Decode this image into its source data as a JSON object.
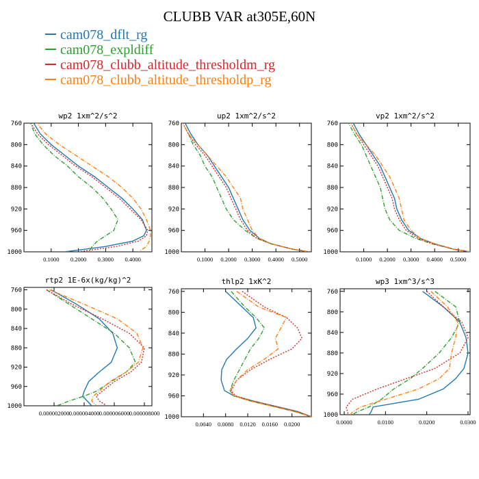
{
  "title": "CLUBB VAR at305E,60N",
  "legend": [
    {
      "label": "cam078_dflt_rg",
      "color": "#1f77b4"
    },
    {
      "label": "cam078_expldiff",
      "color": "#2ca02c"
    },
    {
      "label": "cam078_clubb_altitude_thresholdm_rg",
      "color": "#d62728"
    },
    {
      "label": "cam078_clubb_altitude_thresholdp_rg",
      "color": "#ff7f0e"
    }
  ],
  "chart_data": [
    {
      "type": "line",
      "title": "wp2   1xm^2/s^2",
      "xlim": [
        0,
        0.47
      ],
      "ylim": [
        760,
        1000
      ],
      "yticks": [
        760,
        800,
        840,
        880,
        920,
        960,
        1000
      ],
      "xticks": [
        0.1,
        0.2,
        0.3,
        0.4
      ],
      "xtick_labels": [
        "0.1000",
        "0.2000",
        "0.3000",
        "0.4000"
      ],
      "y": [
        755,
        780,
        800,
        820,
        840,
        860,
        880,
        900,
        920,
        940,
        960,
        970,
        980,
        990,
        1000
      ],
      "series": [
        {
          "name": "cam078_dflt_rg",
          "x": [
            0.03,
            0.06,
            0.1,
            0.15,
            0.2,
            0.26,
            0.31,
            0.36,
            0.4,
            0.435,
            0.45,
            0.44,
            0.4,
            0.3,
            0.15
          ]
        },
        {
          "name": "cam078_expldiff",
          "x": [
            0.02,
            0.04,
            0.07,
            0.11,
            0.16,
            0.2,
            0.25,
            0.29,
            0.32,
            0.345,
            0.33,
            0.3,
            0.27,
            0.25,
            0.24
          ]
        },
        {
          "name": "cam078_clubb_altitude_thresholdm_rg",
          "x": [
            0.02,
            0.05,
            0.09,
            0.14,
            0.19,
            0.25,
            0.3,
            0.35,
            0.39,
            0.43,
            0.455,
            0.45,
            0.42,
            0.34,
            0.2
          ]
        },
        {
          "name": "cam078_clubb_altitude_thresholdp_rg",
          "x": [
            0.04,
            0.08,
            0.13,
            0.19,
            0.25,
            0.31,
            0.36,
            0.4,
            0.43,
            0.45,
            0.465,
            0.465,
            0.46,
            0.45,
            0.42
          ]
        }
      ]
    },
    {
      "type": "line",
      "title": "up2   1xm^2/s^2",
      "xlim": [
        0,
        0.55
      ],
      "ylim": [
        760,
        1000
      ],
      "yticks": [
        760,
        800,
        840,
        880,
        920,
        960,
        1000
      ],
      "xticks": [
        0.1,
        0.2,
        0.3,
        0.4,
        0.5
      ],
      "xtick_labels": [
        "0.1000",
        "0.2000",
        "0.3000",
        "0.4000",
        "0.5000"
      ],
      "y": [
        755,
        780,
        800,
        820,
        840,
        860,
        880,
        900,
        920,
        940,
        960,
        975,
        985,
        995,
        1000
      ],
      "series": [
        {
          "name": "cam078_dflt_rg",
          "x": [
            0.01,
            0.04,
            0.07,
            0.11,
            0.14,
            0.17,
            0.2,
            0.22,
            0.24,
            0.26,
            0.29,
            0.33,
            0.38,
            0.47,
            0.54
          ]
        },
        {
          "name": "cam078_expldiff",
          "x": [
            0.0,
            0.03,
            0.05,
            0.08,
            0.1,
            0.13,
            0.15,
            0.17,
            0.19,
            0.22,
            0.27,
            0.32,
            0.38,
            0.47,
            0.54
          ]
        },
        {
          "name": "cam078_clubb_altitude_thresholdm_rg",
          "x": [
            0.0,
            0.03,
            0.06,
            0.1,
            0.13,
            0.16,
            0.19,
            0.21,
            0.23,
            0.25,
            0.28,
            0.32,
            0.38,
            0.47,
            0.54
          ]
        },
        {
          "name": "cam078_clubb_altitude_thresholdp_rg",
          "x": [
            0.0,
            0.03,
            0.07,
            0.11,
            0.15,
            0.19,
            0.22,
            0.25,
            0.26,
            0.28,
            0.3,
            0.33,
            0.38,
            0.47,
            0.54
          ]
        }
      ]
    },
    {
      "type": "line",
      "title": "vp2   1xm^2/s^2",
      "xlim": [
        0,
        0.55
      ],
      "ylim": [
        760,
        1000
      ],
      "yticks": [
        760,
        800,
        840,
        880,
        920,
        960,
        1000
      ],
      "xticks": [
        0.1,
        0.2,
        0.3,
        0.4,
        0.5
      ],
      "xtick_labels": [
        "0.1000",
        "0.2000",
        "0.3000",
        "0.4000",
        "0.5000"
      ],
      "y": [
        755,
        780,
        800,
        820,
        840,
        860,
        880,
        900,
        920,
        940,
        960,
        975,
        985,
        995,
        1000
      ],
      "series": [
        {
          "name": "cam078_dflt_rg",
          "x": [
            0.05,
            0.08,
            0.11,
            0.14,
            0.17,
            0.19,
            0.21,
            0.23,
            0.24,
            0.26,
            0.29,
            0.34,
            0.4,
            0.48,
            0.55
          ]
        },
        {
          "name": "cam078_expldiff",
          "x": [
            0.03,
            0.06,
            0.09,
            0.11,
            0.13,
            0.15,
            0.17,
            0.18,
            0.19,
            0.21,
            0.25,
            0.32,
            0.39,
            0.48,
            0.55
          ]
        },
        {
          "name": "cam078_clubb_altitude_thresholdm_rg",
          "x": [
            0.04,
            0.07,
            0.1,
            0.13,
            0.16,
            0.18,
            0.2,
            0.22,
            0.23,
            0.25,
            0.28,
            0.33,
            0.39,
            0.48,
            0.55
          ]
        },
        {
          "name": "cam078_clubb_altitude_thresholdp_rg",
          "x": [
            0.04,
            0.07,
            0.11,
            0.15,
            0.18,
            0.21,
            0.23,
            0.25,
            0.26,
            0.27,
            0.3,
            0.34,
            0.4,
            0.48,
            0.55
          ]
        }
      ]
    },
    {
      "type": "line",
      "title": "rtp2   1E-6x(kg/kg)^2",
      "xlim": [
        0,
        8.5e-06
      ],
      "ylim": [
        755,
        1000
      ],
      "yticks": [
        760,
        800,
        840,
        880,
        920,
        960,
        1000
      ],
      "xticks": [
        2e-06,
        4e-06,
        6e-06,
        8e-06
      ],
      "xtick_labels": [
        "0.000002000",
        "0.000004000",
        "0.000006000",
        "0.000008000"
      ],
      "y": [
        760,
        790,
        820,
        850,
        880,
        910,
        930,
        950,
        970,
        980,
        990,
        1000
      ],
      "series": [
        {
          "name": "cam078_dflt_rg",
          "x": [
            1.8e-06,
            3.5e-06,
            5e-06,
            5.9e-06,
            6.2e-06,
            5.8e-06,
            5e-06,
            4.3e-06,
            4e-06,
            3.9e-06,
            4.2e-06,
            4.5e-06
          ]
        },
        {
          "name": "cam078_expldiff",
          "x": [
            1.5e-06,
            3e-06,
            4.5e-06,
            6e-06,
            7e-06,
            7.4e-06,
            6.8e-06,
            5.8e-06,
            4.8e-06,
            4e-06,
            3e-06,
            2.2e-06
          ]
        },
        {
          "name": "cam078_clubb_altitude_thresholdm_rg",
          "x": [
            1.5e-06,
            3.2e-06,
            5.2e-06,
            7e-06,
            8e-06,
            7.8e-06,
            7.1e-06,
            6e-06,
            5.2e-06,
            4.8e-06,
            5e-06,
            5.5e-06
          ]
        },
        {
          "name": "cam078_clubb_altitude_thresholdp_rg",
          "x": [
            1.7e-06,
            4e-06,
            6.2e-06,
            7.5e-06,
            7.9e-06,
            7.6e-06,
            6.8e-06,
            5.7e-06,
            5e-06,
            4.6e-06,
            4.5e-06,
            4.8e-06
          ]
        }
      ]
    },
    {
      "type": "line",
      "title": "thlp2   1xK^2",
      "xlim": [
        0,
        0.0235
      ],
      "ylim": [
        755,
        1000
      ],
      "yticks": [
        760,
        800,
        840,
        880,
        920,
        960,
        1000
      ],
      "xticks": [
        0.004,
        0.008,
        0.012,
        0.016,
        0.02
      ],
      "xtick_labels": [
        "0.0040",
        "0.0080",
        "0.0120",
        "0.0160",
        "0.0200"
      ],
      "y": [
        760,
        790,
        810,
        830,
        850,
        870,
        890,
        910,
        930,
        950,
        960,
        970,
        980,
        990,
        1000
      ],
      "series": [
        {
          "name": "cam078_dflt_rg",
          "x": [
            0.008,
            0.011,
            0.013,
            0.0135,
            0.012,
            0.01,
            0.0082,
            0.0073,
            0.0072,
            0.0078,
            0.0095,
            0.013,
            0.017,
            0.021,
            0.0235
          ]
        },
        {
          "name": "cam078_expldiff",
          "x": [
            0.009,
            0.0115,
            0.0135,
            0.015,
            0.014,
            0.0125,
            0.0115,
            0.0105,
            0.0095,
            0.0088,
            0.0095,
            0.0125,
            0.0165,
            0.0205,
            0.0235
          ]
        },
        {
          "name": "cam078_clubb_altitude_thresholdm_rg",
          "x": [
            0.011,
            0.015,
            0.019,
            0.021,
            0.0218,
            0.02,
            0.016,
            0.0125,
            0.01,
            0.009,
            0.0098,
            0.013,
            0.017,
            0.021,
            0.0235
          ]
        },
        {
          "name": "cam078_clubb_altitude_thresholdp_rg",
          "x": [
            0.01,
            0.014,
            0.019,
            0.018,
            0.017,
            0.0175,
            0.015,
            0.012,
            0.01,
            0.0088,
            0.0095,
            0.0125,
            0.0165,
            0.0205,
            0.0235
          ]
        }
      ]
    },
    {
      "type": "line",
      "title": "wp3   1xm^3/s^3",
      "xlim": [
        -0.001,
        0.0305
      ],
      "ylim": [
        755,
        1000
      ],
      "yticks": [
        760,
        800,
        840,
        880,
        920,
        960,
        1000
      ],
      "xticks": [
        0,
        0.01,
        0.02,
        0.03
      ],
      "xtick_labels": [
        "0.0000",
        "0.0100",
        "0.0200",
        "0.0300"
      ],
      "y": [
        760,
        790,
        820,
        850,
        880,
        910,
        930,
        950,
        970,
        985,
        995,
        1000
      ],
      "series": [
        {
          "name": "cam078_dflt_rg",
          "x": [
            0.019,
            0.024,
            0.028,
            0.0295,
            0.03,
            0.029,
            0.027,
            0.024,
            0.018,
            0.007,
            0.0065,
            0.006
          ]
        },
        {
          "name": "cam078_expldiff",
          "x": [
            0.022,
            0.027,
            0.028,
            0.026,
            0.023,
            0.019,
            0.016,
            0.012,
            0.009,
            0.006,
            0.003,
            0.002
          ]
        },
        {
          "name": "cam078_clubb_altitude_thresholdm_rg",
          "x": [
            0.02,
            0.024,
            0.0285,
            0.03,
            0.028,
            0.022,
            0.015,
            0.008,
            0.002,
            0.0005,
            0.0008,
            0.001
          ]
        },
        {
          "name": "cam078_clubb_altitude_thresholdp_rg",
          "x": [
            0.021,
            0.025,
            0.0275,
            0.027,
            0.026,
            0.0255,
            0.023,
            0.018,
            0.01,
            0.004,
            0.002,
            0.0015
          ]
        }
      ]
    }
  ]
}
